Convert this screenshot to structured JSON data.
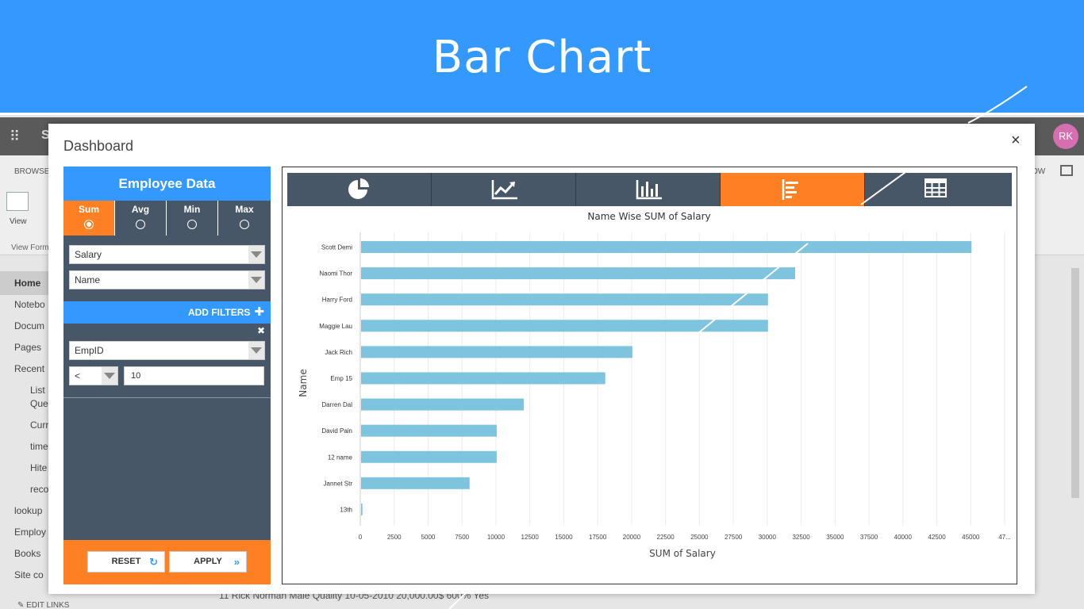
{
  "banner": {
    "title": "Bar Chart"
  },
  "sharepoint": {
    "brand": "S",
    "avatar": "RK",
    "ribbon_tab": "BROWSE",
    "ribbon_tab_right": "OW",
    "view_label": "View",
    "view_format_label": "View Form",
    "nav": [
      "Home",
      "Notebo",
      "Docum",
      "Pages",
      "Recent",
      "List",
      "Que",
      "Curr",
      "time",
      "Hite",
      "reco",
      "lookup",
      "Employ",
      "Books",
      "Site co"
    ],
    "bottom_row": "11    Rick Norman        Male       Quality        10-05-2010     20,000.00$          600%         Yes",
    "edit_links": "EDIT LINKS"
  },
  "modal": {
    "title": "Dashboard",
    "close": "×",
    "panel_title": "Employee Data",
    "aggregations": [
      {
        "label": "Sum",
        "selected": true
      },
      {
        "label": "Avg",
        "selected": false
      },
      {
        "label": "Min",
        "selected": false
      },
      {
        "label": "Max",
        "selected": false
      }
    ],
    "value_field": "Salary",
    "group_field": "Name",
    "add_filters": "ADD FILTERS",
    "filter": {
      "field": "EmpID",
      "operator": "<",
      "value": "10"
    },
    "reset_label": "RESET",
    "apply_label": "APPLY",
    "toolbar": [
      {
        "icon": "pie-chart-icon",
        "active": false
      },
      {
        "icon": "line-chart-icon",
        "active": false
      },
      {
        "icon": "column-chart-icon",
        "active": false
      },
      {
        "icon": "bar-chart-icon",
        "active": true
      },
      {
        "icon": "table-icon",
        "active": false
      }
    ],
    "colors": {
      "accent": "#ff8022",
      "primary": "#3399ff",
      "panel": "#475767",
      "bar": "#7ec4df"
    }
  },
  "chart_data": {
    "type": "bar",
    "orientation": "horizontal",
    "title": "Name Wise SUM of Salary",
    "xlabel": "SUM of Salary",
    "ylabel": "Name",
    "categories": [
      "Scott Demi",
      "Naomi Thor",
      "Harry Ford",
      "Maggie Lau",
      "Jack Rich",
      "Emp 15",
      "Darren Dal",
      "David Pain",
      "12 name",
      "Jannet Str",
      "13th"
    ],
    "values": [
      45000,
      32000,
      30000,
      30000,
      20000,
      18000,
      12000,
      10000,
      10000,
      8000,
      100
    ],
    "xticks": [
      "0",
      "2500",
      "5000",
      "7500",
      "10000",
      "12500",
      "15000",
      "17500",
      "20000",
      "22500",
      "25000",
      "27500",
      "30000",
      "32500",
      "35000",
      "37500",
      "40000",
      "42500",
      "45000",
      "47..."
    ],
    "xlim": [
      0,
      47500
    ],
    "grid": true,
    "legend": "none"
  }
}
